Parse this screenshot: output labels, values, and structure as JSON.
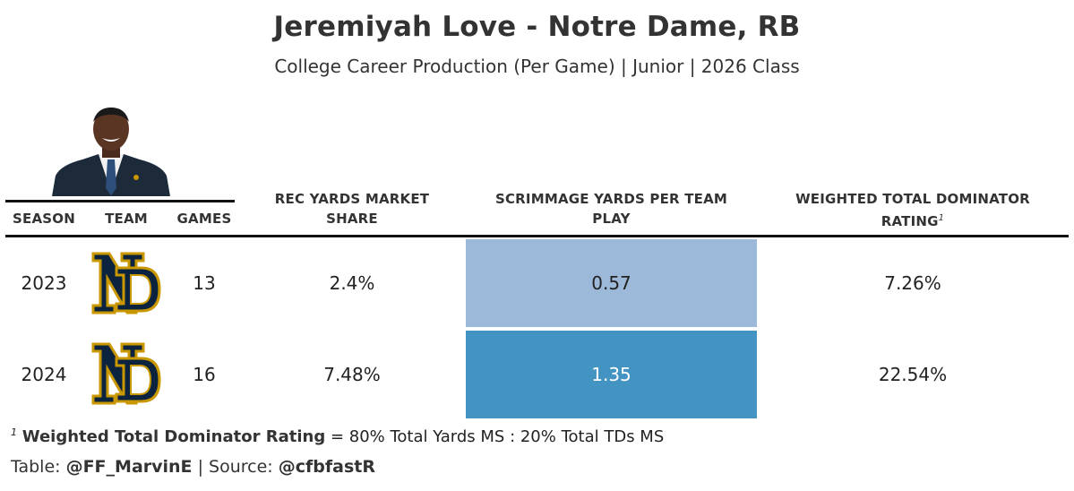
{
  "header": {
    "title": "Jeremiyah Love - Notre Dame, RB",
    "subtitle": "College Career Production (Per Game) | Junior | 2026 Class"
  },
  "columns": {
    "season": "SEASON",
    "team": "TEAM",
    "games": "GAMES",
    "rec_line1": "REC YARDS MARKET",
    "rec_line2": "SHARE",
    "scrim_line1": "SCRIMMAGE YARDS PER TEAM",
    "scrim_line2": "PLAY",
    "wtdr_line1": "WEIGHTED TOTAL DOMINATOR",
    "wtdr_line2": "RATING",
    "wtdr_marker": "1"
  },
  "rows": [
    {
      "season": "2023",
      "team_icon": "notre-dame-logo-icon",
      "games": "13",
      "rec_yards_ms": "2.4%",
      "scrimmage_ypp": "0.57",
      "scrim_color": "#9cb9d9",
      "scrim_text_color": "#222222",
      "wtdr": "7.26%"
    },
    {
      "season": "2024",
      "team_icon": "notre-dame-logo-icon",
      "games": "16",
      "rec_yards_ms": "7.48%",
      "scrimmage_ypp": "1.35",
      "scrim_color": "#4393c3",
      "scrim_text_color": "#ffffff",
      "wtdr": "22.54%"
    }
  ],
  "footnote": {
    "marker": "1",
    "term": "Weighted Total Dominator Rating",
    "definition": " = 80% Total Yards MS : 20% Total TDs MS"
  },
  "source": {
    "table_label": "Table: ",
    "table_author": "@FF_MarvinE",
    "separator": " | Source: ",
    "source_name": "@cfbfastR"
  },
  "colors": {
    "nd_navy": "#0c2340",
    "nd_gold": "#c99700"
  }
}
